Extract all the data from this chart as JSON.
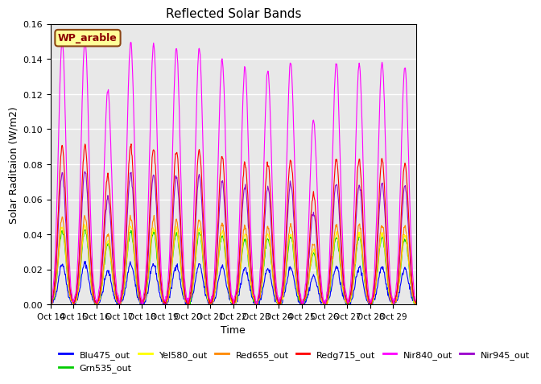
{
  "title": "Reflected Solar Bands",
  "xlabel": "Time",
  "ylabel": "Solar Raditaion (W/m2)",
  "ylim": [
    0,
    0.16
  ],
  "yticks": [
    0.0,
    0.02,
    0.04,
    0.06,
    0.08,
    0.1,
    0.12,
    0.14,
    0.16
  ],
  "xtick_labels": [
    "Oct 14",
    "Oct 15",
    "Oct 16",
    "Oct 17",
    "Oct 18",
    "Oct 19",
    "Oct 20",
    "Oct 21",
    "Oct 22",
    "Oct 23",
    "Oct 24",
    "Oct 25",
    "Oct 26",
    "Oct 27",
    "Oct 28",
    "Oct 29"
  ],
  "annotation": "WP_arable",
  "annotation_color": "#8B0000",
  "annotation_bg": "#FFFF99",
  "annotation_border": "#8B4513",
  "bands": [
    {
      "name": "Blu475_out",
      "color": "#0000FF"
    },
    {
      "name": "Grn535_out",
      "color": "#00CC00"
    },
    {
      "name": "Yel580_out",
      "color": "#FFFF00"
    },
    {
      "name": "Red655_out",
      "color": "#FF8800"
    },
    {
      "name": "Redg715_out",
      "color": "#FF0000"
    },
    {
      "name": "Nir840_out",
      "color": "#FF00FF"
    },
    {
      "name": "Nir945_out",
      "color": "#9900CC"
    }
  ],
  "bg_color": "#E8E8E8",
  "grid_color": "#FFFFFF",
  "n_days": 16,
  "pts_per_day": 48,
  "peak_day_multipliers": [
    0.15,
    0.152,
    0.122,
    0.15,
    0.148,
    0.146,
    0.146,
    0.14,
    0.135,
    0.134,
    0.138,
    0.105,
    0.138,
    0.137,
    0.138,
    0.135
  ],
  "band_scale_factors": [
    0.155,
    0.28,
    0.295,
    0.33,
    0.6,
    1.0,
    0.5
  ]
}
